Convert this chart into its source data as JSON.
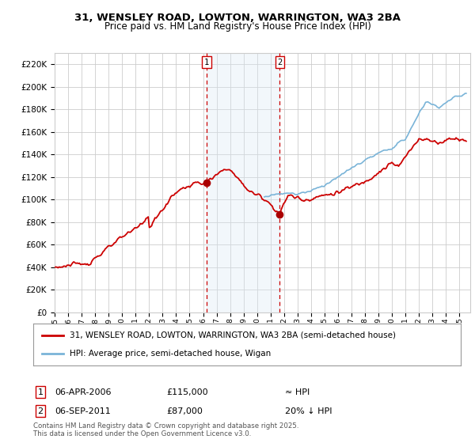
{
  "title": "31, WENSLEY ROAD, LOWTON, WARRINGTON, WA3 2BA",
  "subtitle": "Price paid vs. HM Land Registry's House Price Index (HPI)",
  "ytick_vals": [
    0,
    20000,
    40000,
    60000,
    80000,
    100000,
    120000,
    140000,
    160000,
    180000,
    200000,
    220000
  ],
  "ylim": [
    0,
    230000
  ],
  "hpi_color": "#7ab4d8",
  "price_color": "#cc0000",
  "grid_color": "#cccccc",
  "bg_color": "#ffffff",
  "shade_color": "#daeaf5",
  "vline_color": "#cc0000",
  "marker_color": "#aa0000",
  "event1_year": 2006.27,
  "event1_price": 115000,
  "event1_label": "06-APR-2006",
  "event1_price_label": "£115,000",
  "event1_hpi_label": "≈ HPI",
  "event2_year": 2011.68,
  "event2_price": 87000,
  "event2_label": "06-SEP-2011",
  "event2_price_label": "£87,000",
  "event2_hpi_label": "20% ↓ HPI",
  "legend1": "31, WENSLEY ROAD, LOWTON, WARRINGTON, WA3 2BA (semi-detached house)",
  "legend2": "HPI: Average price, semi-detached house, Wigan",
  "footnote": "Contains HM Land Registry data © Crown copyright and database right 2025.\nThis data is licensed under the Open Government Licence v3.0.",
  "xstart": 1995,
  "xend": 2025.8
}
